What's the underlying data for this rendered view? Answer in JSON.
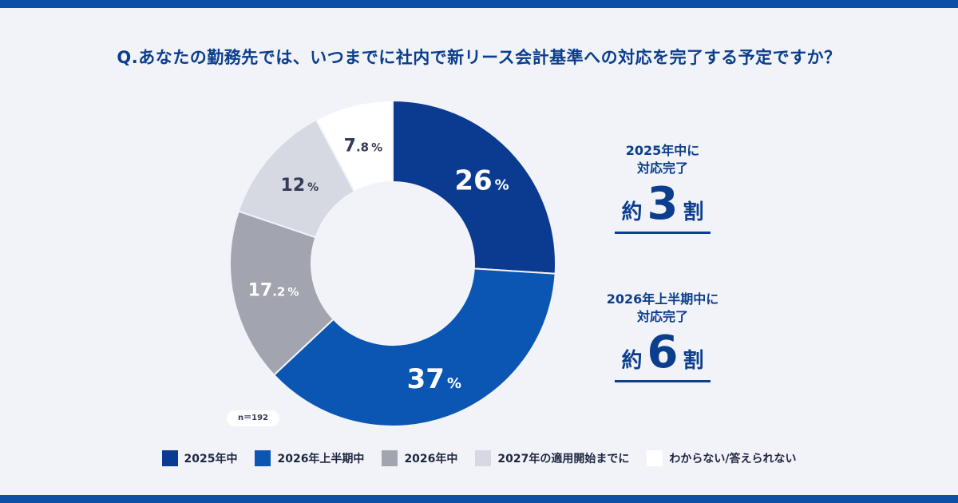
{
  "question": "Q.あなたの勤務先では、いつまでに社内で新リース会計基準への対応を完了する予定ですか？",
  "sample_size": "n＝192",
  "callouts": [
    {
      "caption_line1": "2025年中に",
      "caption_line2": "対応完了",
      "prefix": "約",
      "number": "3",
      "suffix": "割"
    },
    {
      "caption_line1": "2026年上半期中に",
      "caption_line2": "対応完了",
      "prefix": "約",
      "number": "6",
      "suffix": "割"
    }
  ],
  "chart_data": {
    "type": "pie",
    "donut": true,
    "title": "",
    "categories": [
      "2025年中",
      "2026年上半期中",
      "2026年中",
      "2027年の適用開始までに",
      "わからない/答えられない"
    ],
    "values": [
      26,
      37,
      17.2,
      12,
      7.8
    ],
    "labels": [
      {
        "int": "26",
        "dec": "",
        "unit": "%"
      },
      {
        "int": "37",
        "dec": "",
        "unit": "%"
      },
      {
        "int": "17",
        "dec": ".2",
        "unit": "%"
      },
      {
        "int": "12",
        "dec": "",
        "unit": "%"
      },
      {
        "int": "7",
        "dec": ".8",
        "unit": "%"
      }
    ],
    "colors": [
      "#0b3a91",
      "#0b56b3",
      "#a2a4b0",
      "#d6d8e2",
      "#ffffff"
    ],
    "label_colors": [
      "#ffffff",
      "#ffffff",
      "#ffffff",
      "#333b55",
      "#333b55"
    ],
    "legend_position": "bottom"
  }
}
